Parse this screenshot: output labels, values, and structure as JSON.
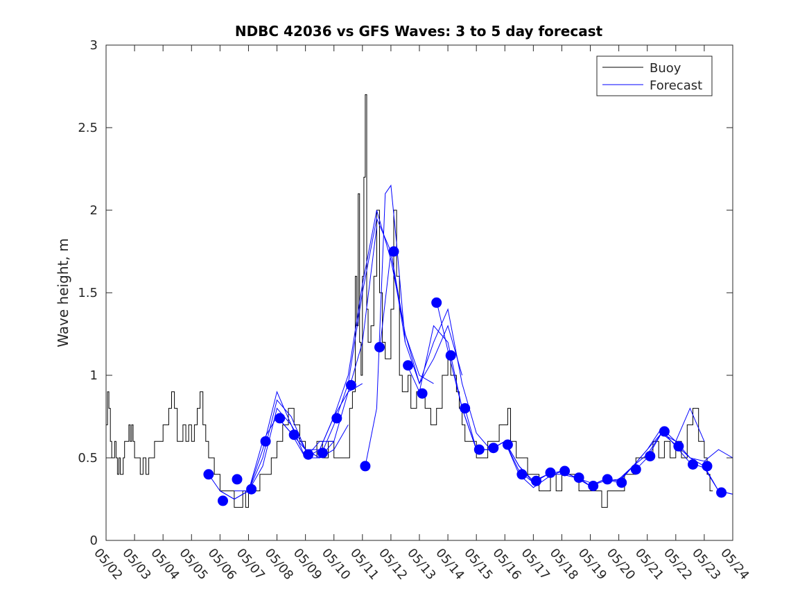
{
  "chart_data": {
    "type": "line",
    "title": "NDBC 42036 vs GFS Waves: 3 to 5 day forecast",
    "xlabel": "",
    "ylabel": "Wave height, m",
    "x_unit": "day of May",
    "xlim": [
      2,
      24
    ],
    "ylim": [
      0,
      3
    ],
    "x_tick_values": [
      2,
      3,
      4,
      5,
      6,
      7,
      8,
      9,
      10,
      11,
      12,
      13,
      14,
      15,
      16,
      17,
      18,
      19,
      20,
      21,
      22,
      23,
      24
    ],
    "x_tick_labels": [
      "05/02",
      "05/03",
      "05/04",
      "05/05",
      "05/06",
      "05/07",
      "05/08",
      "05/09",
      "05/10",
      "05/11",
      "05/12",
      "05/13",
      "05/14",
      "05/15",
      "05/16",
      "05/17",
      "05/18",
      "05/19",
      "05/20",
      "05/21",
      "05/22",
      "05/23",
      "05/24"
    ],
    "y_ticks": [
      0,
      0.5,
      1,
      1.5,
      2,
      2.5,
      3
    ],
    "y_tick_labels": [
      "0",
      "0.5",
      "1",
      "1.5",
      "2",
      "2.5",
      "3"
    ],
    "legend": {
      "position": "top-right",
      "entries": [
        {
          "label": "Buoy",
          "color": "#000000"
        },
        {
          "label": "Forecast",
          "color": "#0000ff"
        }
      ]
    },
    "buoy": {
      "name": "Buoy",
      "color": "#000000",
      "x": [
        2.0,
        2.05,
        2.1,
        2.15,
        2.2,
        2.25,
        2.3,
        2.35,
        2.4,
        2.45,
        2.5,
        2.55,
        2.6,
        2.65,
        2.7,
        2.75,
        2.8,
        2.85,
        2.9,
        2.95,
        3.0,
        3.1,
        3.2,
        3.3,
        3.4,
        3.5,
        3.6,
        3.7,
        3.8,
        3.9,
        4.0,
        4.1,
        4.2,
        4.3,
        4.4,
        4.5,
        4.6,
        4.7,
        4.8,
        4.9,
        5.0,
        5.1,
        5.2,
        5.3,
        5.4,
        5.5,
        5.6,
        5.7,
        5.8,
        5.9,
        6.0,
        6.1,
        6.2,
        6.3,
        6.4,
        6.5,
        6.6,
        6.7,
        6.8,
        6.9,
        7.0,
        7.2,
        7.4,
        7.6,
        7.8,
        8.0,
        8.2,
        8.4,
        8.6,
        8.8,
        9.0,
        9.2,
        9.4,
        9.6,
        9.8,
        10.0,
        10.2,
        10.4,
        10.55,
        10.65,
        10.75,
        10.8,
        10.85,
        10.9,
        10.95,
        11.0,
        11.05,
        11.1,
        11.15,
        11.2,
        11.3,
        11.4,
        11.5,
        11.6,
        11.7,
        11.8,
        11.9,
        12.0,
        12.1,
        12.2,
        12.3,
        12.4,
        12.5,
        12.6,
        12.7,
        12.8,
        12.9,
        13.0,
        13.2,
        13.4,
        13.6,
        13.8,
        14.0,
        14.1,
        14.2,
        14.3,
        14.4,
        14.5,
        14.6,
        14.8,
        15.0,
        15.2,
        15.4,
        15.6,
        15.8,
        16.0,
        16.1,
        16.2,
        16.4,
        16.6,
        16.8,
        17.0,
        17.2,
        17.4,
        17.6,
        17.8,
        18.0,
        18.2,
        18.4,
        18.6,
        18.8,
        19.0,
        19.2,
        19.4,
        19.6,
        19.8,
        20.0,
        20.2,
        20.4,
        20.6,
        20.8,
        21.0,
        21.2,
        21.4,
        21.6,
        21.8,
        22.0,
        22.2,
        22.4,
        22.6,
        22.8,
        23.0,
        23.1,
        23.2,
        23.3
      ],
      "y": [
        0.7,
        0.9,
        0.8,
        0.6,
        0.5,
        0.5,
        0.6,
        0.5,
        0.4,
        0.5,
        0.4,
        0.4,
        0.5,
        0.6,
        0.6,
        0.6,
        0.7,
        0.6,
        0.7,
        0.6,
        0.5,
        0.5,
        0.4,
        0.5,
        0.4,
        0.5,
        0.5,
        0.6,
        0.6,
        0.6,
        0.7,
        0.7,
        0.8,
        0.9,
        0.8,
        0.6,
        0.6,
        0.7,
        0.6,
        0.7,
        0.6,
        0.7,
        0.8,
        0.9,
        0.7,
        0.6,
        0.5,
        0.5,
        0.4,
        0.4,
        0.3,
        0.3,
        0.3,
        0.3,
        0.3,
        0.2,
        0.2,
        0.2,
        0.3,
        0.2,
        0.3,
        0.3,
        0.4,
        0.4,
        0.5,
        0.6,
        0.7,
        0.8,
        0.7,
        0.6,
        0.5,
        0.5,
        0.6,
        0.5,
        0.6,
        0.5,
        0.5,
        0.5,
        0.8,
        0.9,
        1.6,
        1.3,
        2.1,
        1.2,
        1.0,
        1.6,
        2.2,
        2.7,
        1.4,
        1.2,
        1.3,
        1.6,
        2.0,
        1.5,
        1.2,
        1.1,
        1.1,
        1.4,
        2.0,
        1.6,
        1.0,
        0.9,
        0.9,
        1.0,
        0.8,
        0.8,
        0.9,
        0.9,
        0.8,
        0.7,
        0.8,
        1.0,
        1.1,
        1.0,
        1.0,
        0.9,
        0.8,
        0.7,
        0.6,
        0.6,
        0.5,
        0.5,
        0.6,
        0.6,
        0.7,
        0.7,
        0.8,
        0.6,
        0.5,
        0.5,
        0.4,
        0.4,
        0.3,
        0.3,
        0.4,
        0.3,
        0.4,
        0.4,
        0.4,
        0.3,
        0.3,
        0.3,
        0.3,
        0.2,
        0.3,
        0.3,
        0.3,
        0.4,
        0.4,
        0.5,
        0.5,
        0.5,
        0.6,
        0.5,
        0.6,
        0.5,
        0.6,
        0.5,
        0.7,
        0.8,
        0.6,
        0.5,
        0.4,
        0.3,
        0.3
      ]
    },
    "forecast_lines": [
      {
        "x": [
          5.6,
          6.0,
          6.5,
          7.0,
          7.5,
          8.0,
          8.5,
          9.0,
          9.5,
          10.0
        ],
        "y": [
          0.4,
          0.3,
          0.25,
          0.3,
          0.45,
          0.8,
          0.7,
          0.55,
          0.5,
          0.6
        ]
      },
      {
        "x": [
          6.0,
          6.5,
          7.0,
          7.5,
          8.0,
          8.5,
          9.0,
          9.5,
          10.0,
          10.5
        ],
        "y": [
          0.3,
          0.25,
          0.3,
          0.5,
          0.85,
          0.75,
          0.55,
          0.5,
          0.55,
          0.7
        ]
      },
      {
        "x": [
          6.5,
          7.0,
          7.5,
          8.0,
          8.5,
          9.0,
          9.5,
          10.0,
          10.5,
          11.0
        ],
        "y": [
          0.3,
          0.3,
          0.55,
          0.9,
          0.7,
          0.5,
          0.6,
          0.6,
          0.9,
          0.95
        ]
      },
      {
        "x": [
          7.0,
          7.5,
          8.0,
          8.5,
          9.0,
          9.5,
          10.0,
          10.5,
          11.0,
          11.5
        ],
        "y": [
          0.3,
          0.6,
          0.75,
          0.65,
          0.55,
          0.55,
          0.75,
          0.9,
          1.2,
          1.9
        ]
      },
      {
        "x": [
          8.0,
          8.5,
          9.0,
          9.5,
          10.0,
          10.5,
          11.0,
          11.5,
          12.0,
          12.5
        ],
        "y": [
          0.75,
          0.65,
          0.5,
          0.5,
          0.7,
          0.95,
          1.5,
          1.95,
          1.75,
          1.2
        ]
      },
      {
        "x": [
          9.0,
          9.5,
          10.0,
          10.5,
          11.0,
          11.5,
          12.0,
          12.5,
          13.0,
          13.5
        ],
        "y": [
          0.5,
          0.55,
          0.75,
          1.0,
          1.55,
          2.0,
          1.7,
          1.25,
          1.0,
          0.95
        ]
      },
      {
        "x": [
          11.1,
          11.5,
          11.8,
          12.0,
          12.2,
          12.5,
          13.0,
          13.5,
          14.0,
          14.5
        ],
        "y": [
          0.45,
          0.8,
          2.1,
          2.15,
          1.8,
          1.2,
          0.95,
          1.1,
          1.3,
          1.0
        ]
      },
      {
        "x": [
          11.6,
          12.0,
          12.5,
          13.0,
          13.5,
          14.0,
          14.5,
          15.0,
          15.5,
          16.0
        ],
        "y": [
          1.15,
          1.75,
          1.25,
          0.95,
          1.2,
          1.4,
          0.95,
          0.65,
          0.55,
          0.6
        ]
      },
      {
        "x": [
          12.6,
          13.0,
          13.5,
          14.0,
          14.5,
          15.0,
          15.5,
          16.0,
          16.5,
          17.0
        ],
        "y": [
          1.05,
          0.9,
          1.3,
          1.2,
          0.8,
          0.55,
          0.55,
          0.6,
          0.45,
          0.35
        ]
      },
      {
        "x": [
          13.6,
          14.0,
          14.5,
          15.0,
          15.5,
          16.0,
          16.5,
          17.0,
          17.5,
          18.0
        ],
        "y": [
          1.45,
          1.15,
          0.8,
          0.55,
          0.55,
          0.6,
          0.4,
          0.32,
          0.38,
          0.42
        ]
      },
      {
        "x": [
          14.6,
          15.0,
          15.5,
          16.0,
          16.5,
          17.0,
          17.5,
          18.0,
          18.5,
          19.0
        ],
        "y": [
          0.8,
          0.55,
          0.55,
          0.6,
          0.42,
          0.35,
          0.4,
          0.4,
          0.38,
          0.35
        ]
      },
      {
        "x": [
          16.0,
          16.5,
          17.0,
          17.5,
          18.0,
          18.5,
          19.0,
          19.5,
          20.0,
          20.5
        ],
        "y": [
          0.6,
          0.45,
          0.36,
          0.4,
          0.42,
          0.38,
          0.33,
          0.36,
          0.37,
          0.45
        ]
      },
      {
        "x": [
          17.0,
          17.5,
          18.0,
          18.5,
          19.0,
          19.5,
          20.0,
          20.5,
          21.0,
          21.5
        ],
        "y": [
          0.35,
          0.4,
          0.42,
          0.38,
          0.33,
          0.37,
          0.35,
          0.45,
          0.55,
          0.65
        ]
      },
      {
        "x": [
          18.6,
          19.0,
          19.5,
          20.0,
          20.5,
          21.0,
          21.5,
          22.0,
          22.5,
          23.0
        ],
        "y": [
          0.38,
          0.33,
          0.37,
          0.36,
          0.45,
          0.52,
          0.65,
          0.6,
          0.8,
          0.6
        ]
      },
      {
        "x": [
          19.6,
          20.0,
          20.5,
          21.0,
          21.5,
          22.0,
          22.5,
          23.0,
          23.5,
          24.0
        ],
        "y": [
          0.37,
          0.36,
          0.45,
          0.55,
          0.68,
          0.6,
          0.5,
          0.45,
          0.3,
          0.28
        ]
      },
      {
        "x": [
          20.6,
          21.0,
          21.5,
          22.0,
          22.5,
          23.0,
          23.5,
          24.0
        ],
        "y": [
          0.43,
          0.5,
          0.65,
          0.58,
          0.5,
          0.48,
          0.55,
          0.5
        ]
      },
      {
        "x": [
          21.6,
          22.0,
          22.5,
          23.0,
          23.5,
          24.0
        ],
        "y": [
          0.65,
          0.57,
          0.47,
          0.44,
          0.3,
          0.28
        ]
      }
    ],
    "forecast_points": {
      "name": "Forecast",
      "color": "#0000ff",
      "x": [
        5.6,
        6.1,
        6.6,
        7.1,
        7.6,
        8.1,
        8.6,
        9.1,
        9.6,
        10.1,
        10.6,
        11.1,
        11.6,
        12.1,
        12.6,
        13.1,
        13.6,
        14.1,
        14.6,
        15.1,
        15.6,
        16.1,
        16.6,
        17.1,
        17.6,
        18.1,
        18.6,
        19.1,
        19.6,
        20.1,
        20.6,
        21.1,
        21.6,
        22.1,
        22.6,
        23.1,
        23.6
      ],
      "y": [
        0.4,
        0.24,
        0.37,
        0.31,
        0.6,
        0.74,
        0.64,
        0.52,
        0.53,
        0.74,
        0.94,
        0.45,
        1.17,
        1.75,
        1.06,
        0.89,
        1.44,
        1.12,
        0.8,
        0.55,
        0.56,
        0.58,
        0.4,
        0.36,
        0.41,
        0.42,
        0.38,
        0.33,
        0.37,
        0.35,
        0.43,
        0.51,
        0.66,
        0.57,
        0.46,
        0.45,
        0.29
      ]
    }
  }
}
